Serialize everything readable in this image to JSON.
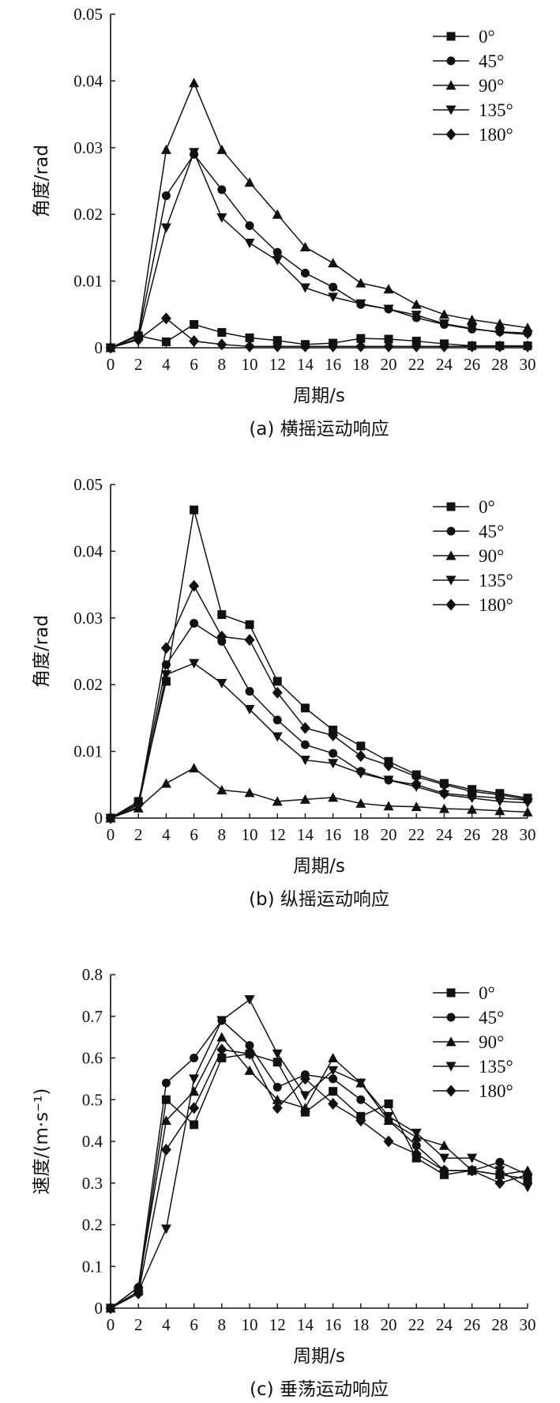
{
  "chart_data": [
    {
      "type": "line",
      "caption": "(a) 横摇运动响应",
      "xlabel": "周期/s",
      "ylabel": "角度/rad",
      "xlim": [
        0,
        30
      ],
      "ylim": [
        0,
        0.05
      ],
      "xticks": [
        "0",
        "2",
        "4",
        "6",
        "8",
        "10",
        "12",
        "14",
        "16",
        "18",
        "20",
        "22",
        "24",
        "26",
        "28",
        "30"
      ],
      "yticks": [
        "0",
        "0.01",
        "0.02",
        "0.03",
        "0.04",
        "0.05"
      ],
      "legend_position": "top-right",
      "x": [
        0,
        2,
        4,
        6,
        8,
        10,
        12,
        14,
        16,
        18,
        20,
        22,
        24,
        26,
        28,
        30
      ],
      "series": [
        {
          "name": "0°",
          "marker": "square",
          "values": [
            0,
            0.0018,
            0.0009,
            0.0035,
            0.0023,
            0.0015,
            0.0011,
            0.0005,
            0.0007,
            0.0014,
            0.0013,
            0.001,
            0.0006,
            0.0003,
            0.0003,
            0.0003
          ]
        },
        {
          "name": "45°",
          "marker": "circle",
          "values": [
            0,
            0.0018,
            0.0228,
            0.029,
            0.0237,
            0.0183,
            0.0143,
            0.0112,
            0.0091,
            0.0065,
            0.0058,
            0.0045,
            0.0035,
            0.0028,
            0.0024,
            0.0022
          ]
        },
        {
          "name": "90°",
          "marker": "triangle-up",
          "values": [
            0,
            0.002,
            0.0297,
            0.0397,
            0.0297,
            0.0248,
            0.02,
            0.0151,
            0.0127,
            0.0097,
            0.0088,
            0.0065,
            0.005,
            0.0042,
            0.0036,
            0.003
          ]
        },
        {
          "name": "135°",
          "marker": "triangle-down",
          "values": [
            0,
            0.0014,
            0.018,
            0.0293,
            0.0195,
            0.0157,
            0.0131,
            0.009,
            0.0076,
            0.0066,
            0.0058,
            0.0049,
            0.0036,
            0.0029,
            0.0023,
            0.002
          ]
        },
        {
          "name": "180°",
          "marker": "diamond",
          "values": [
            0,
            0.0012,
            0.0044,
            0.001,
            0.0005,
            0.0002,
            0.0002,
            0.0002,
            0.0002,
            0.0002,
            0.0002,
            0.0002,
            0.0002,
            0.0002,
            0.0002,
            0.0002
          ]
        }
      ]
    },
    {
      "type": "line",
      "caption": "(b) 纵摇运动响应",
      "xlabel": "周期/s",
      "ylabel": "角度/rad",
      "xlim": [
        0,
        30
      ],
      "ylim": [
        0,
        0.05
      ],
      "xticks": [
        "0",
        "2",
        "4",
        "6",
        "8",
        "10",
        "12",
        "14",
        "16",
        "18",
        "20",
        "22",
        "24",
        "26",
        "28",
        "30"
      ],
      "yticks": [
        "0",
        "0.01",
        "0.02",
        "0.03",
        "0.04",
        "0.05"
      ],
      "legend_position": "top-right",
      "x": [
        0,
        2,
        4,
        6,
        8,
        10,
        12,
        14,
        16,
        18,
        20,
        22,
        24,
        26,
        28,
        30
      ],
      "series": [
        {
          "name": "0°",
          "marker": "square",
          "values": [
            0,
            0.0025,
            0.0205,
            0.0462,
            0.0305,
            0.029,
            0.0205,
            0.0165,
            0.0132,
            0.0108,
            0.0085,
            0.0065,
            0.0052,
            0.0043,
            0.0037,
            0.003
          ]
        },
        {
          "name": "45°",
          "marker": "circle",
          "values": [
            0,
            0.0022,
            0.023,
            0.0292,
            0.0265,
            0.019,
            0.0147,
            0.011,
            0.0097,
            0.007,
            0.0057,
            0.005,
            0.0037,
            0.0033,
            0.003,
            0.0027
          ]
        },
        {
          "name": "90°",
          "marker": "triangle-up",
          "values": [
            0,
            0.0015,
            0.0052,
            0.0075,
            0.0042,
            0.0038,
            0.0025,
            0.0028,
            0.0031,
            0.0022,
            0.0018,
            0.0017,
            0.0014,
            0.0013,
            0.0011,
            0.0009
          ]
        },
        {
          "name": "135°",
          "marker": "triangle-down",
          "values": [
            0,
            0.0017,
            0.0215,
            0.0232,
            0.0202,
            0.0163,
            0.0122,
            0.0087,
            0.0082,
            0.0067,
            0.0057,
            0.0047,
            0.0035,
            0.003,
            0.0025,
            0.0023
          ]
        },
        {
          "name": "180°",
          "marker": "diamond",
          "values": [
            0,
            0.002,
            0.0255,
            0.0348,
            0.0272,
            0.0267,
            0.0188,
            0.0135,
            0.0124,
            0.0093,
            0.0079,
            0.0062,
            0.005,
            0.004,
            0.0035,
            0.0028
          ]
        }
      ]
    },
    {
      "type": "line",
      "caption": "(c) 垂荡运动响应",
      "xlabel": "周期/s",
      "ylabel": "速度/(m·s⁻¹)",
      "xlim": [
        0,
        30
      ],
      "ylim": [
        0,
        0.8
      ],
      "xticks": [
        "0",
        "2",
        "4",
        "6",
        "8",
        "10",
        "12",
        "14",
        "16",
        "18",
        "20",
        "22",
        "24",
        "26",
        "28",
        "30"
      ],
      "yticks": [
        "0",
        "0.1",
        "0.2",
        "0.3",
        "0.4",
        "0.5",
        "0.6",
        "0.7",
        "0.8"
      ],
      "legend_position": "top-right",
      "x": [
        0,
        2,
        4,
        6,
        8,
        10,
        12,
        14,
        16,
        18,
        20,
        22,
        24,
        26,
        28,
        30
      ],
      "series": [
        {
          "name": "0°",
          "marker": "square",
          "values": [
            0,
            0.04,
            0.5,
            0.44,
            0.6,
            0.61,
            0.59,
            0.47,
            0.52,
            0.46,
            0.49,
            0.36,
            0.32,
            0.33,
            0.32,
            0.31
          ]
        },
        {
          "name": "45°",
          "marker": "circle",
          "values": [
            0,
            0.05,
            0.54,
            0.6,
            0.69,
            0.63,
            0.53,
            0.56,
            0.55,
            0.5,
            0.45,
            0.39,
            0.33,
            0.33,
            0.35,
            0.32
          ]
        },
        {
          "name": "90°",
          "marker": "triangle-up",
          "values": [
            0,
            0.05,
            0.45,
            0.52,
            0.65,
            0.57,
            0.5,
            0.48,
            0.6,
            0.54,
            0.45,
            0.41,
            0.39,
            0.33,
            0.32,
            0.33
          ]
        },
        {
          "name": "135°",
          "marker": "triangle-down",
          "values": [
            0,
            0.04,
            0.19,
            0.55,
            0.69,
            0.74,
            0.61,
            0.51,
            0.57,
            0.54,
            0.46,
            0.42,
            0.36,
            0.36,
            0.33,
            0.29
          ]
        },
        {
          "name": "180°",
          "marker": "diamond",
          "values": [
            0,
            0.035,
            0.38,
            0.48,
            0.62,
            0.61,
            0.48,
            0.55,
            0.49,
            0.45,
            0.4,
            0.37,
            0.33,
            0.33,
            0.3,
            0.32
          ]
        }
      ]
    }
  ]
}
